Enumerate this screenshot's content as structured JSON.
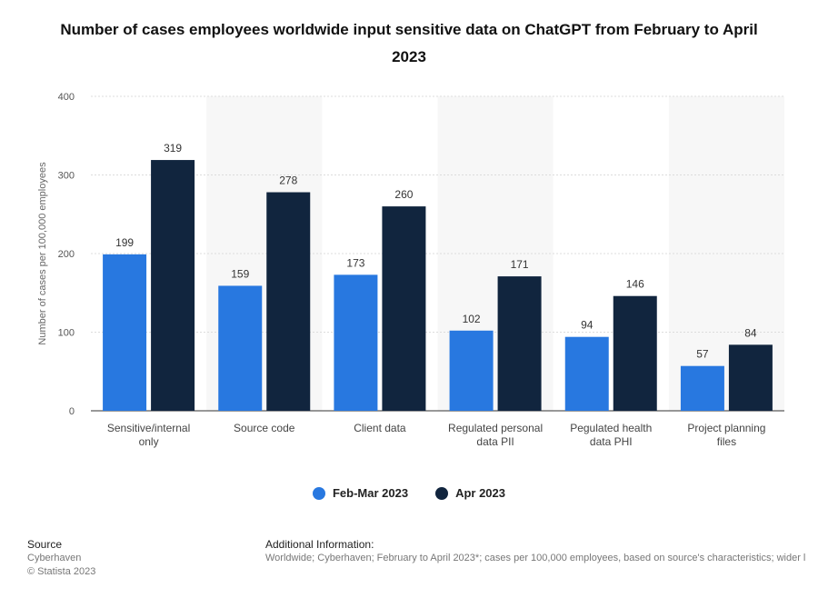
{
  "chart_data": {
    "type": "bar",
    "title": "Number of cases employees worldwide input sensitive data on ChatGPT from February to April 2023",
    "ylabel": "Number of cases per 100,000 employees",
    "xlabel": "",
    "ylim": [
      0,
      400
    ],
    "yticks": [
      0,
      100,
      200,
      300,
      400
    ],
    "grid": true,
    "legend_position": "bottom-center",
    "categories": [
      [
        "Sensitive/internal",
        "only"
      ],
      [
        "Source code"
      ],
      [
        "Client data"
      ],
      [
        "Regulated personal",
        "data PII"
      ],
      [
        "Pegulated health",
        "data PHI"
      ],
      [
        "Project planning",
        "files"
      ]
    ],
    "series": [
      {
        "name": "Feb-Mar 2023",
        "color": "#2878e0",
        "values": [
          199,
          159,
          173,
          102,
          94,
          57
        ]
      },
      {
        "name": "Apr 2023",
        "color": "#11253e",
        "values": [
          319,
          278,
          260,
          171,
          146,
          84
        ]
      }
    ]
  },
  "footer": {
    "source_heading": "Source",
    "source_lines": [
      "Cyberhaven",
      "© Statista 2023"
    ],
    "info_heading": "Additional Information:",
    "info_text": "Worldwide; Cyberhaven; February to April 2023*; cases per 100,000 employees, based on source's characteristics; wider l"
  }
}
